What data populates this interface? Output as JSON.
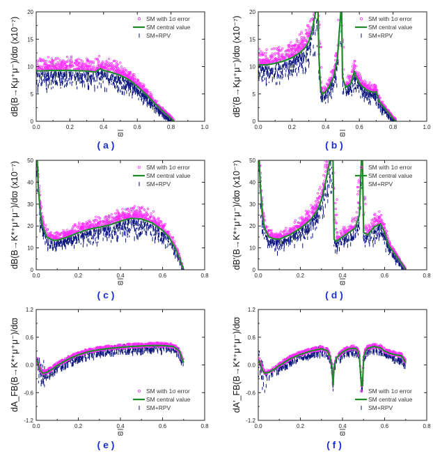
{
  "legend": {
    "sm_error": "SM with 1σ error",
    "sm_central": "SM central value",
    "sm_rpv": "SM+RPV"
  },
  "colors": {
    "sm_error": "#ff2bff",
    "sm_central": "#1f8a2a",
    "sm_rpv": "#0a147d",
    "label": "#1a2fd6"
  },
  "chart_data": [
    {
      "id": "a",
      "type": "scatter",
      "panel_label": "( a )",
      "ylabel": "dB(B→Kμ⁺μ⁻)/dϖ (x10⁻⁷)",
      "xlabel": "ϖ",
      "xlim": [
        0,
        1.0
      ],
      "ylim": [
        0,
        20
      ],
      "xticks": [
        0.0,
        0.2,
        0.4,
        0.6,
        0.8,
        1.0
      ],
      "yticks": [
        0,
        5,
        10,
        15,
        20
      ],
      "x_end": 0.82,
      "resonances": [],
      "series": [
        {
          "name": "SM central value",
          "x": [
            0.0,
            0.1,
            0.2,
            0.3,
            0.35,
            0.38,
            0.4,
            0.45,
            0.5,
            0.55,
            0.6,
            0.65,
            0.7,
            0.75,
            0.8,
            0.82
          ],
          "y": [
            9.2,
            9.3,
            9.3,
            9.2,
            9.0,
            9.6,
            9.3,
            8.9,
            8.4,
            7.6,
            6.4,
            5.0,
            3.4,
            1.9,
            0.5,
            0.0
          ]
        }
      ],
      "legend_pos": "top-right"
    },
    {
      "id": "b",
      "type": "scatter",
      "panel_label": "( b )",
      "ylabel": "dB'(B→Kμ⁺μ⁻)/dϖ (x10⁻⁷)",
      "xlabel": "ϖ",
      "xlim": [
        0,
        1.0
      ],
      "ylim": [
        0,
        20
      ],
      "xticks": [
        0.0,
        0.2,
        0.4,
        0.6,
        0.8,
        1.0
      ],
      "yticks": [
        0,
        5,
        10,
        15,
        20
      ],
      "x_end": 0.82,
      "resonances": [
        0.355,
        0.49
      ],
      "series": [
        {
          "name": "SM central value",
          "x": [
            0.0,
            0.05,
            0.1,
            0.15,
            0.2,
            0.25,
            0.28,
            0.3,
            0.32,
            0.34,
            0.355,
            0.36,
            0.37,
            0.38,
            0.4,
            0.42,
            0.45,
            0.47,
            0.48,
            0.49,
            0.495,
            0.5,
            0.52,
            0.55,
            0.57,
            0.58,
            0.6,
            0.62,
            0.64,
            0.66,
            0.68,
            0.7,
            0.72,
            0.75,
            0.78,
            0.8,
            0.82
          ],
          "y": [
            10.3,
            10.3,
            10.6,
            11.0,
            11.6,
            12.6,
            13.5,
            14.6,
            16.6,
            20,
            20,
            12,
            6.0,
            5.0,
            5.4,
            6.3,
            8.3,
            11.5,
            16,
            20,
            20,
            8.0,
            6.2,
            6.9,
            9.1,
            8.2,
            7.0,
            6.3,
            5.8,
            5.5,
            5.3,
            5.4,
            3.5,
            2.4,
            1.3,
            0.5,
            0.0
          ]
        }
      ],
      "legend_pos": "top-right"
    },
    {
      "id": "c",
      "type": "scatter",
      "panel_label": "( c )",
      "ylabel": "dB(B→K*⁺μ⁺μ⁻)/dϖ (x10⁻⁷)",
      "xlabel": "ϖ",
      "xlim": [
        0,
        0.8
      ],
      "ylim": [
        0,
        50
      ],
      "xticks": [
        0.0,
        0.2,
        0.4,
        0.6,
        0.8
      ],
      "yticks": [
        0,
        10,
        20,
        30,
        40,
        50
      ],
      "x_end": 0.7,
      "resonances": [],
      "series": [
        {
          "name": "SM central value",
          "x": [
            0.005,
            0.01,
            0.02,
            0.03,
            0.05,
            0.08,
            0.1,
            0.15,
            0.2,
            0.25,
            0.3,
            0.35,
            0.4,
            0.45,
            0.5,
            0.55,
            0.6,
            0.63,
            0.66,
            0.68,
            0.7
          ],
          "y": [
            50,
            38,
            26,
            20,
            15,
            13.5,
            13.5,
            15,
            17,
            18.5,
            19.5,
            20.5,
            22.2,
            23.5,
            23.2,
            21.5,
            18,
            15,
            10,
            5.5,
            0
          ]
        }
      ],
      "legend_pos": "top-right"
    },
    {
      "id": "d",
      "type": "scatter",
      "panel_label": "( d )",
      "ylabel": "dB'(B→K*⁺μ⁺μ⁻)/dϖ (x10⁻⁷)",
      "xlabel": "ϖ",
      "xlim": [
        0,
        0.8
      ],
      "ylim": [
        0,
        50
      ],
      "xticks": [
        0.0,
        0.2,
        0.4,
        0.6,
        0.8
      ],
      "yticks": [
        0,
        10,
        20,
        30,
        40,
        50
      ],
      "x_end": 0.7,
      "resonances": [
        0.355,
        0.49
      ],
      "series": [
        {
          "name": "SM central value",
          "x": [
            0.005,
            0.01,
            0.02,
            0.03,
            0.05,
            0.08,
            0.1,
            0.15,
            0.2,
            0.25,
            0.28,
            0.3,
            0.32,
            0.34,
            0.35,
            0.355,
            0.36,
            0.37,
            0.4,
            0.43,
            0.46,
            0.48,
            0.49,
            0.495,
            0.5,
            0.52,
            0.55,
            0.58,
            0.6,
            0.62,
            0.65,
            0.68,
            0.7
          ],
          "y": [
            50,
            38,
            25,
            19,
            15,
            14,
            14,
            16,
            19,
            23,
            27,
            32,
            40,
            50,
            50,
            50,
            14,
            13,
            15,
            17,
            19,
            25,
            50,
            50,
            17,
            16,
            19.5,
            21,
            17,
            11,
            7,
            3,
            0
          ]
        }
      ],
      "legend_pos": "top-right"
    },
    {
      "id": "e",
      "type": "scatter",
      "panel_label": "( e )",
      "ylabel": "dA_FB(B→K*⁺μ⁺μ⁻)/dϖ",
      "xlabel": "ϖ",
      "xlim": [
        0,
        0.8
      ],
      "ylim": [
        -1.2,
        1.2
      ],
      "xticks": [
        0.0,
        0.2,
        0.4,
        0.6,
        0.8
      ],
      "yticks": [
        -1.2,
        -0.6,
        0.0,
        0.6,
        1.2
      ],
      "x_end": 0.7,
      "resonances": [],
      "series": [
        {
          "name": "SM central value",
          "x": [
            0.005,
            0.01,
            0.02,
            0.03,
            0.05,
            0.08,
            0.1,
            0.15,
            0.2,
            0.25,
            0.3,
            0.35,
            0.4,
            0.45,
            0.5,
            0.55,
            0.6,
            0.65,
            0.68,
            0.7
          ],
          "y": [
            0.1,
            0.0,
            -0.12,
            -0.18,
            -0.16,
            -0.08,
            -0.01,
            0.12,
            0.22,
            0.29,
            0.33,
            0.36,
            0.38,
            0.4,
            0.41,
            0.42,
            0.42,
            0.4,
            0.3,
            0.05
          ]
        }
      ],
      "legend_pos": "bottom-right"
    },
    {
      "id": "f",
      "type": "scatter",
      "panel_label": "( f )",
      "ylabel": "dA'_FB(B→K*⁺μ⁺μ⁻)/dϖ",
      "xlabel": "ϖ",
      "xlim": [
        0,
        0.8
      ],
      "ylim": [
        -1.2,
        1.2
      ],
      "xticks": [
        0.0,
        0.2,
        0.4,
        0.6,
        0.8
      ],
      "yticks": [
        -1.2,
        -0.6,
        0.0,
        0.6,
        1.2
      ],
      "x_end": 0.7,
      "resonances": [
        0.355,
        0.49
      ],
      "series": [
        {
          "name": "SM central value",
          "x": [
            0.005,
            0.01,
            0.02,
            0.03,
            0.05,
            0.08,
            0.1,
            0.15,
            0.2,
            0.25,
            0.3,
            0.33,
            0.34,
            0.35,
            0.355,
            0.36,
            0.37,
            0.4,
            0.43,
            0.46,
            0.47,
            0.48,
            0.49,
            0.495,
            0.5,
            0.51,
            0.52,
            0.55,
            0.58,
            0.6,
            0.62,
            0.65,
            0.68,
            0.7
          ],
          "y": [
            0.1,
            0.0,
            -0.12,
            -0.18,
            -0.16,
            -0.08,
            -0.01,
            0.13,
            0.23,
            0.3,
            0.35,
            0.3,
            0.18,
            -0.05,
            -0.45,
            -0.05,
            0.15,
            0.28,
            0.35,
            0.36,
            0.32,
            0.2,
            -0.45,
            -0.45,
            0.15,
            0.3,
            0.36,
            0.4,
            0.37,
            0.3,
            0.26,
            0.22,
            0.2,
            0.05
          ]
        }
      ],
      "legend_pos": "bottom-right"
    }
  ]
}
